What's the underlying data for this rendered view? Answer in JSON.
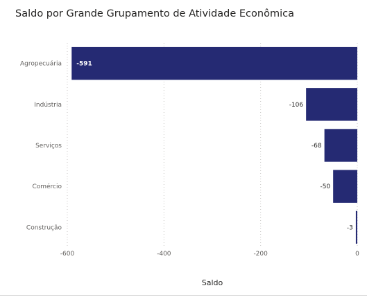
{
  "chart_data": {
    "type": "bar",
    "orientation": "horizontal",
    "title": "Saldo por Grande Grupamento de Atividade Econômica",
    "xlabel": "Saldo",
    "ylabel": "",
    "categories": [
      "Agropecuária",
      "Indústria",
      "Serviços",
      "Comércio",
      "Construção"
    ],
    "values": [
      -591,
      -106,
      -68,
      -50,
      -3
    ],
    "data_labels": [
      "-591",
      "-106",
      "-68",
      "-50",
      "-3"
    ],
    "xlim": [
      -600,
      0
    ],
    "x_ticks": [
      -600,
      -400,
      -200,
      0
    ],
    "x_tick_labels": [
      "-600",
      "-400",
      "-200",
      "0"
    ],
    "grid": "vertical dotted",
    "legend": "none",
    "bar_color": "#252a73"
  }
}
